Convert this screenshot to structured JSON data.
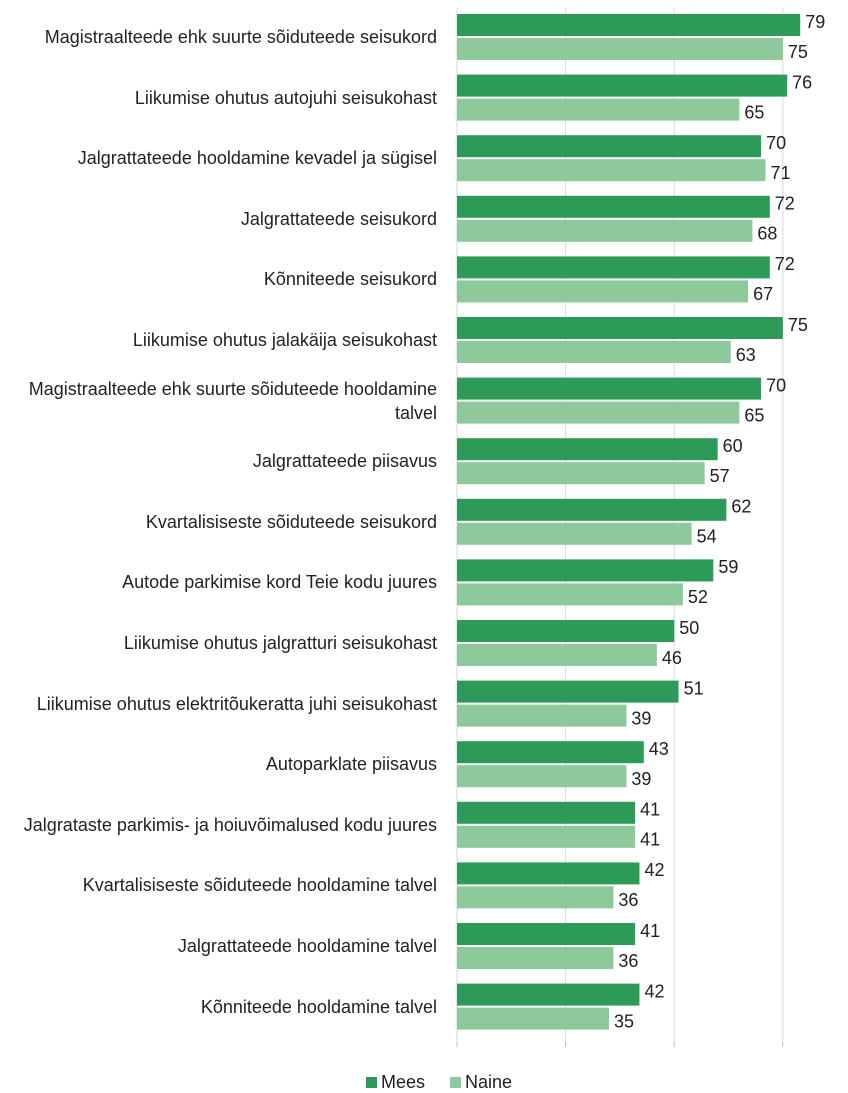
{
  "chart_data": {
    "type": "bar",
    "orientation": "horizontal",
    "categories": [
      "Magistraalteede ehk suurte sõiduteede seisukord",
      "Liikumise ohutus autojuhi seisukohast",
      "Jalgrattateede hooldamine kevadel ja sügisel",
      "Jalgrattateede seisukord",
      "Kõnniteede seisukord",
      "Liikumise ohutus jalakäija seisukohast",
      "Magistraalteede ehk suurte sõiduteede hooldamine talvel",
      "Jalgrattateede piisavus",
      "Kvartalisiseste sõiduteede seisukord",
      "Autode parkimise kord Teie kodu juures",
      "Liikumise ohutus jalgratturi seisukohast",
      "Liikumise ohutus elektritõukeratta juhi seisukohast",
      "Autoparklate piisavus",
      "Jalgrataste parkimis- ja hoiuvõimalused kodu juures",
      "Kvartalisiseste sõiduteede hooldamine talvel",
      "Jalgrattateede hooldamine talvel",
      "Kõnniteede hooldamine talvel"
    ],
    "series": [
      {
        "name": "Mees",
        "color": "#2e9a58",
        "values": [
          79,
          76,
          70,
          72,
          72,
          75,
          70,
          60,
          62,
          59,
          50,
          51,
          43,
          41,
          42,
          41,
          42
        ]
      },
      {
        "name": "Naine",
        "color": "#8dc99b",
        "values": [
          75,
          65,
          71,
          68,
          67,
          63,
          65,
          57,
          54,
          52,
          46,
          39,
          39,
          41,
          36,
          36,
          35
        ]
      }
    ],
    "xlim": [
      0,
      90
    ],
    "xticks": [
      0,
      25,
      50,
      75
    ],
    "grid": true,
    "legend": "bottom"
  }
}
